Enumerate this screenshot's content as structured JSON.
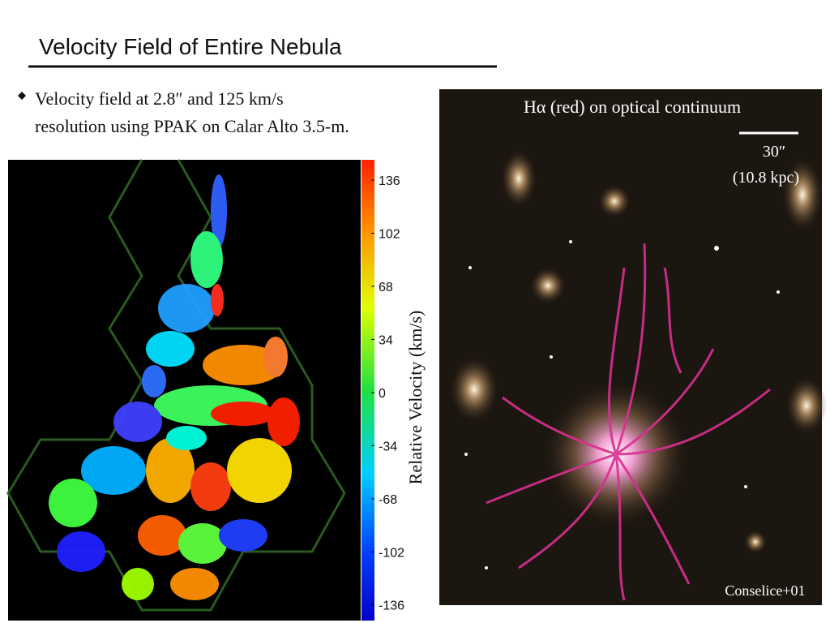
{
  "header": {
    "title": "Velocity Field of Entire Nebula"
  },
  "bullet": {
    "lines": [
      "Velocity field at 2.8″ and 125 km/s",
      "resolution using PPAK on Calar Alto 3.5-m."
    ]
  },
  "colorbar": {
    "label": "Relative Velocity (km/s)",
    "range": [
      -146,
      149
    ],
    "ticks": [
      136,
      102,
      68,
      34,
      0,
      -34,
      -68,
      -102,
      -136
    ]
  },
  "image": {
    "caption": "Hα (red) on optical continuum",
    "scale": "30″",
    "scale_kpc": "(10.8 kpc)",
    "credit": "Conselice+01"
  }
}
